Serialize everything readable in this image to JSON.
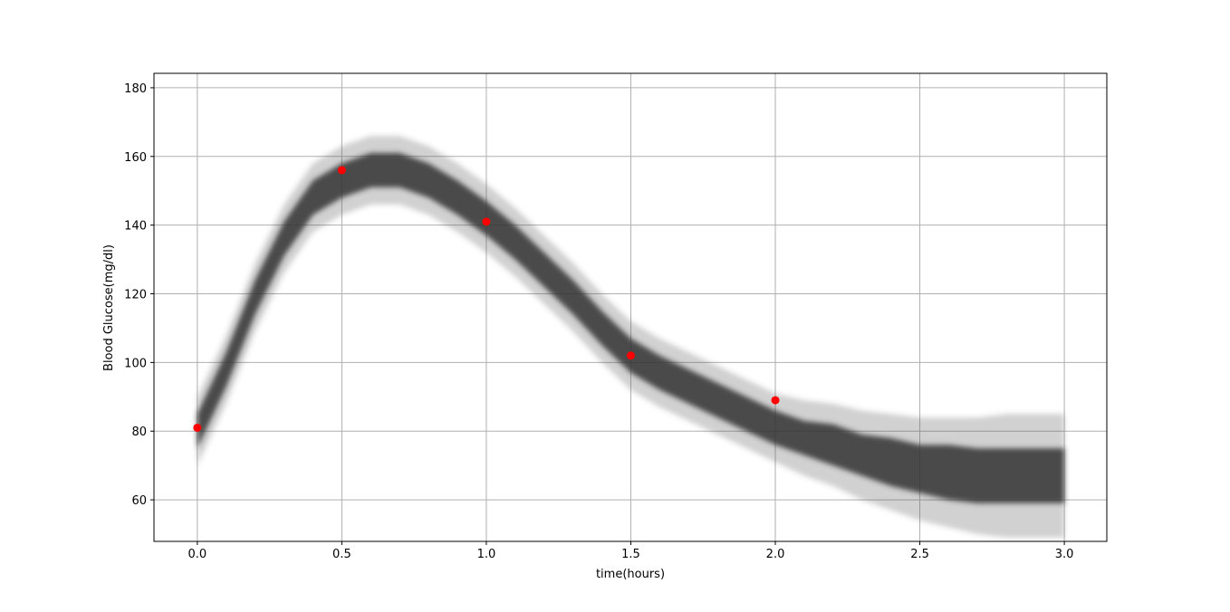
{
  "chart_data": {
    "type": "scatter",
    "x_label": "time(hours)",
    "y_label": "Blood Glucose(mg/dl)",
    "x": [
      0,
      0.5,
      1,
      1.5,
      2
    ],
    "values": [
      81,
      156,
      141,
      102,
      89
    ],
    "color": "#ff0000",
    "xlim": [
      -0.15,
      3.147
    ],
    "ylim": [
      47.9,
      184.2
    ],
    "xticks": [
      {
        "value": 0,
        "label": "0.0"
      },
      {
        "value": 0.5,
        "label": "0.5"
      },
      {
        "value": 1,
        "label": "1.0"
      },
      {
        "value": 1.5,
        "label": "1.5"
      },
      {
        "value": 2,
        "label": "2.0"
      },
      {
        "value": 2.5,
        "label": "2.5"
      },
      {
        "value": 3,
        "label": "3.0"
      }
    ],
    "yticks": [
      60,
      80,
      100,
      120,
      140,
      160,
      180
    ],
    "grid": true,
    "band_x": [
      0,
      0.1,
      0.2,
      0.3,
      0.4,
      0.5,
      0.6,
      0.7,
      0.8,
      0.9,
      1.0,
      1.1,
      1.2,
      1.3,
      1.4,
      1.5,
      1.6,
      1.7,
      1.8,
      1.9,
      2.0,
      2.1,
      2.2,
      2.3,
      2.4,
      2.5,
      2.6,
      2.7,
      2.8,
      2.9,
      3.0
    ],
    "bands": [
      {
        "color": "#444444",
        "opacity": 0.25,
        "lower": [
          70,
          88,
          109,
          126,
          138,
          143,
          146,
          146,
          143,
          138,
          132,
          125,
          117,
          109,
          100,
          92,
          87,
          83,
          79,
          75,
          71,
          67,
          64,
          60,
          57,
          54,
          52,
          50,
          49,
          49,
          49
        ],
        "upper": [
          90,
          108,
          129,
          146,
          158,
          163,
          166,
          166,
          163,
          158,
          152,
          145,
          137,
          129,
          120,
          112,
          107,
          103,
          99,
          95,
          91,
          89,
          88,
          86,
          85,
          84,
          84,
          84,
          85,
          85,
          85
        ]
      },
      {
        "color": "#333333",
        "opacity": 0.85,
        "lower": [
          75,
          93,
          114,
          131,
          143,
          148,
          151,
          151,
          148,
          143,
          137,
          130,
          122,
          114,
          105,
          97,
          92,
          88,
          84,
          80,
          76,
          73,
          70,
          67,
          64,
          62,
          60,
          59,
          59,
          59,
          59
        ],
        "upper": [
          85,
          103,
          124,
          141,
          153,
          158,
          161,
          161,
          158,
          153,
          147,
          140,
          132,
          124,
          115,
          107,
          102,
          98,
          94,
          90,
          86,
          83,
          82,
          79,
          78,
          76,
          76,
          75,
          75,
          75,
          75
        ]
      }
    ]
  }
}
